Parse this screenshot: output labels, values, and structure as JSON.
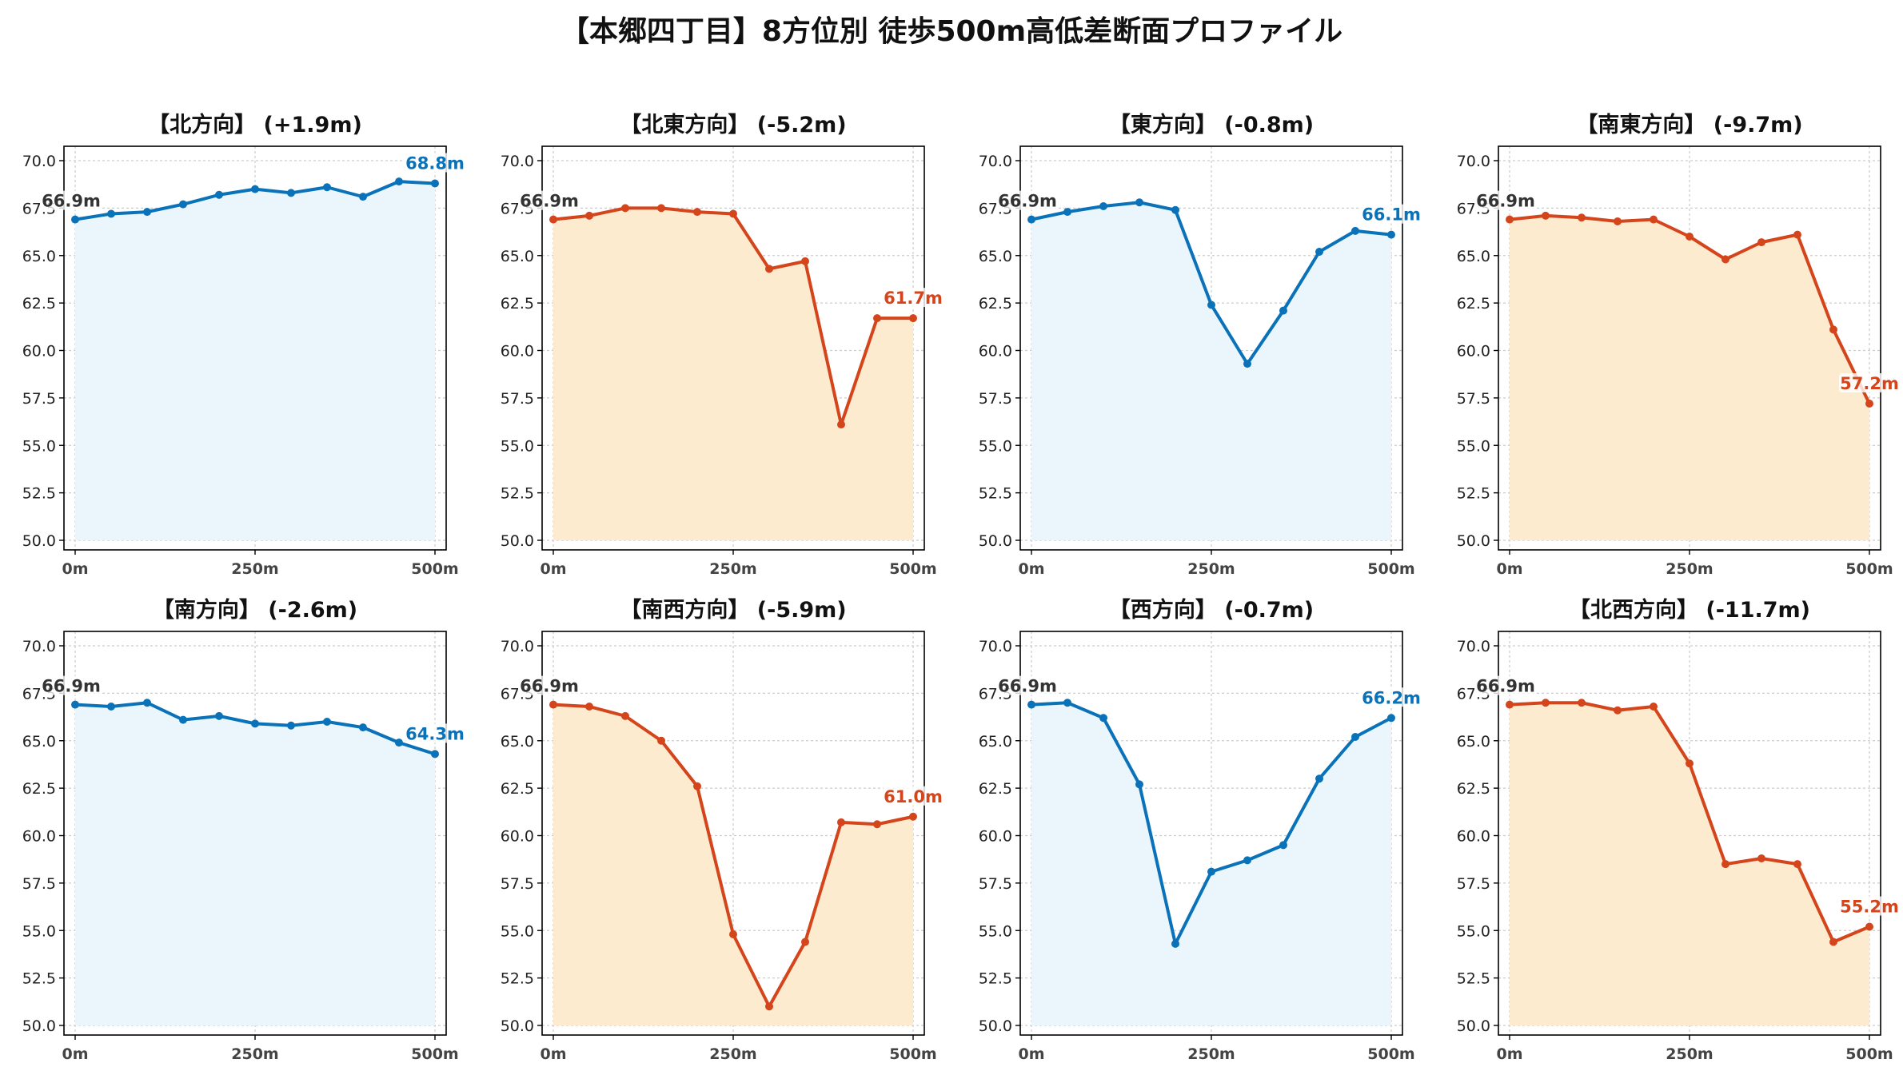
{
  "title": "【本郷四丁目】8方位別 徒歩500m高低差断面プロファイル",
  "colors": {
    "up_line": "#0a72b8",
    "up_fill": "#eaf6fc",
    "down_line": "#d4451c",
    "down_fill": "#fdebd0",
    "start_label": "#333333"
  },
  "chart_data": [
    {
      "type": "area",
      "title": "【北方向】 (+1.9m)",
      "start_label": "66.9m",
      "end_label": "68.8m",
      "trend": "up",
      "x": [
        0,
        50,
        100,
        150,
        200,
        250,
        300,
        350,
        400,
        450,
        500
      ],
      "values": [
        66.9,
        67.2,
        67.3,
        67.7,
        68.2,
        68.5,
        68.3,
        68.6,
        68.1,
        68.9,
        68.8
      ],
      "xticks": [
        "0m",
        "250m",
        "500m"
      ],
      "ylim": [
        50,
        70
      ],
      "grid": true
    },
    {
      "type": "area",
      "title": "【北東方向】 (-5.2m)",
      "start_label": "66.9m",
      "end_label": "61.7m",
      "trend": "down",
      "x": [
        0,
        50,
        100,
        150,
        200,
        250,
        300,
        350,
        400,
        450,
        500
      ],
      "values": [
        66.9,
        67.1,
        67.5,
        67.5,
        67.3,
        67.2,
        64.3,
        64.7,
        56.1,
        61.7,
        61.7
      ],
      "xticks": [
        "0m",
        "250m",
        "500m"
      ],
      "ylim": [
        50,
        70
      ],
      "grid": true
    },
    {
      "type": "area",
      "title": "【東方向】 (-0.8m)",
      "start_label": "66.9m",
      "end_label": "66.1m",
      "trend": "up",
      "x": [
        0,
        50,
        100,
        150,
        200,
        250,
        300,
        350,
        400,
        450,
        500
      ],
      "values": [
        66.9,
        67.3,
        67.6,
        67.8,
        67.4,
        62.4,
        59.3,
        62.1,
        65.2,
        66.3,
        66.1
      ],
      "xticks": [
        "0m",
        "250m",
        "500m"
      ],
      "ylim": [
        50,
        70
      ],
      "grid": true
    },
    {
      "type": "area",
      "title": "【南東方向】 (-9.7m)",
      "start_label": "66.9m",
      "end_label": "57.2m",
      "trend": "down",
      "x": [
        0,
        50,
        100,
        150,
        200,
        250,
        300,
        350,
        400,
        450,
        500
      ],
      "values": [
        66.9,
        67.1,
        67.0,
        66.8,
        66.9,
        66.0,
        64.8,
        65.7,
        66.1,
        61.1,
        57.2
      ],
      "xticks": [
        "0m",
        "250m",
        "500m"
      ],
      "ylim": [
        50,
        70
      ],
      "grid": true
    },
    {
      "type": "area",
      "title": "【南方向】 (-2.6m)",
      "start_label": "66.9m",
      "end_label": "64.3m",
      "trend": "up",
      "x": [
        0,
        50,
        100,
        150,
        200,
        250,
        300,
        350,
        400,
        450,
        500
      ],
      "values": [
        66.9,
        66.8,
        67.0,
        66.1,
        66.3,
        65.9,
        65.8,
        66.0,
        65.7,
        64.9,
        64.3
      ],
      "xticks": [
        "0m",
        "250m",
        "500m"
      ],
      "ylim": [
        50,
        70
      ],
      "grid": true
    },
    {
      "type": "area",
      "title": "【南西方向】 (-5.9m)",
      "start_label": "66.9m",
      "end_label": "61.0m",
      "trend": "down",
      "x": [
        0,
        50,
        100,
        150,
        200,
        250,
        300,
        350,
        400,
        450,
        500
      ],
      "values": [
        66.9,
        66.8,
        66.3,
        65.0,
        62.6,
        54.8,
        51.0,
        54.4,
        60.7,
        60.6,
        61.0
      ],
      "xticks": [
        "0m",
        "250m",
        "500m"
      ],
      "ylim": [
        50,
        70
      ],
      "grid": true
    },
    {
      "type": "area",
      "title": "【西方向】 (-0.7m)",
      "start_label": "66.9m",
      "end_label": "66.2m",
      "trend": "up",
      "x": [
        0,
        50,
        100,
        150,
        200,
        250,
        300,
        350,
        400,
        450,
        500
      ],
      "values": [
        66.9,
        67.0,
        66.2,
        62.7,
        54.3,
        58.1,
        58.7,
        59.5,
        63.0,
        65.2,
        66.2
      ],
      "xticks": [
        "0m",
        "250m",
        "500m"
      ],
      "ylim": [
        50,
        70
      ],
      "grid": true
    },
    {
      "type": "area",
      "title": "【北西方向】 (-11.7m)",
      "start_label": "66.9m",
      "end_label": "55.2m",
      "trend": "down",
      "x": [
        0,
        50,
        100,
        150,
        200,
        250,
        300,
        350,
        400,
        450,
        500
      ],
      "values": [
        66.9,
        67.0,
        67.0,
        66.6,
        66.8,
        63.8,
        58.5,
        58.8,
        58.5,
        54.4,
        55.2
      ],
      "xticks": [
        "0m",
        "250m",
        "500m"
      ],
      "ylim": [
        50,
        70
      ],
      "grid": true
    }
  ]
}
